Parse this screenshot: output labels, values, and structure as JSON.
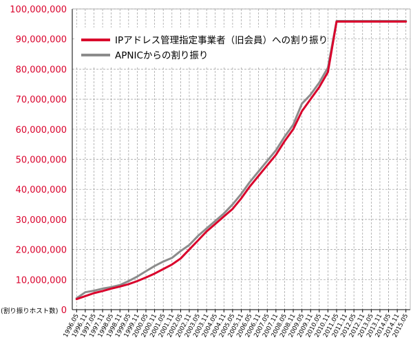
{
  "chart_data": {
    "type": "line",
    "ylabel": "(割り振りホスト数)",
    "ylim": [
      0,
      100000000
    ],
    "y_ticks": [
      0,
      10000000,
      20000000,
      30000000,
      40000000,
      50000000,
      60000000,
      70000000,
      80000000,
      90000000,
      100000000
    ],
    "y_tick_labels": [
      "0",
      "10,000,000",
      "20,000,000",
      "30,000,000",
      "40,000,000",
      "50,000,000",
      "60,000,000",
      "70,000,000",
      "80,000,000",
      "90,000,000",
      "100,000,000"
    ],
    "x_tick_labels": [
      "1996.05",
      "1996.11",
      "1997.05",
      "1997.11",
      "1998.05",
      "1998.11",
      "1999.05",
      "1999.11",
      "2000.05",
      "2000.11",
      "2001.05",
      "2001.11",
      "2002.05",
      "2002.11",
      "2003.05",
      "2003.11",
      "2004.05",
      "2004.11",
      "2005.05",
      "2005.11",
      "2006.05",
      "2006.11",
      "2007.05",
      "2007.11",
      "2008.05",
      "2008.11",
      "2009.05",
      "2009.11",
      "2010.05",
      "2010.11",
      "2011.05",
      "2011.11",
      "2012.05",
      "2012.11",
      "2013.05",
      "2013.11",
      "2014.05",
      "2014.11",
      "2015.05"
    ],
    "grid": true,
    "legend_position": "top-left",
    "series": [
      {
        "name": "IPアドレス管理指定事業者（旧会員）への割り振り",
        "color": "#d9002b",
        "x": [
          "1996.05",
          "1996.11",
          "1997.05",
          "1997.11",
          "1998.05",
          "1998.11",
          "1999.05",
          "1999.11",
          "2000.05",
          "2000.11",
          "2001.05",
          "2001.11",
          "2002.05",
          "2002.11",
          "2003.05",
          "2003.11",
          "2004.05",
          "2004.11",
          "2005.05",
          "2005.11",
          "2006.05",
          "2006.11",
          "2007.05",
          "2007.11",
          "2008.05",
          "2008.11",
          "2009.05",
          "2009.11",
          "2010.05",
          "2010.11",
          "2011.05",
          "2011.11",
          "2012.05",
          "2012.11",
          "2013.05",
          "2013.11",
          "2014.05",
          "2014.11",
          "2015.05"
        ],
        "values": [
          3500000,
          4500000,
          5500000,
          6200000,
          7000000,
          7700000,
          8500000,
          9500000,
          10700000,
          12000000,
          13500000,
          15000000,
          17000000,
          20000000,
          23000000,
          26000000,
          28500000,
          31000000,
          33500000,
          37000000,
          41000000,
          44500000,
          48000000,
          51500000,
          56000000,
          60000000,
          66000000,
          70000000,
          74000000,
          79000000,
          95800000,
          95800000,
          95800000,
          95800000,
          95800000,
          95800000,
          95800000,
          95800000,
          95800000
        ]
      },
      {
        "name": "APNICからの割り振り",
        "color": "#8c8c8c",
        "x": [
          "1996.05",
          "1996.11",
          "1997.05",
          "1997.11",
          "1998.05",
          "1998.11",
          "1999.05",
          "1999.11",
          "2000.05",
          "2000.11",
          "2001.05",
          "2001.11",
          "2002.05",
          "2002.11",
          "2003.05",
          "2003.11",
          "2004.05",
          "2004.11",
          "2005.05",
          "2005.11",
          "2006.05",
          "2006.11",
          "2007.05",
          "2007.11",
          "2008.05",
          "2008.11",
          "2009.05",
          "2009.11",
          "2010.05",
          "2010.11",
          "2011.05",
          "2011.11",
          "2012.05",
          "2012.11",
          "2013.05",
          "2013.11",
          "2014.05",
          "2014.11",
          "2015.05"
        ],
        "values": [
          3800000,
          5800000,
          6300000,
          7000000,
          7500000,
          8200000,
          9500000,
          11000000,
          12800000,
          14500000,
          16000000,
          17200000,
          19500000,
          21500000,
          24500000,
          27000000,
          29500000,
          32000000,
          35000000,
          38500000,
          42500000,
          46000000,
          49500000,
          53000000,
          57500000,
          61500000,
          68500000,
          71500000,
          75500000,
          80500000,
          96000000,
          96000000,
          96000000,
          96000000,
          96000000,
          96000000,
          96000000,
          96000000,
          96000000
        ]
      }
    ]
  }
}
